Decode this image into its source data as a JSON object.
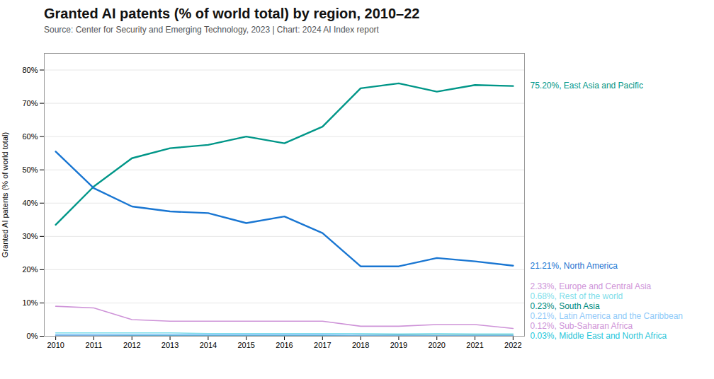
{
  "chart_data": {
    "type": "line",
    "title": "Granted AI patents (% of world total) by region, 2010–22",
    "subtitle": "Source: Center for Security and Emerging Technology, 2023 | Chart: 2024 AI Index report",
    "ylabel": "Granted AI patents (% of world total)",
    "x": [
      2010,
      2011,
      2012,
      2013,
      2014,
      2015,
      2016,
      2017,
      2018,
      2019,
      2020,
      2021,
      2022
    ],
    "xlim": [
      2009.7,
      2022.3
    ],
    "xticks": [
      2010,
      2011,
      2012,
      2013,
      2014,
      2015,
      2016,
      2017,
      2018,
      2019,
      2020,
      2021,
      2022
    ],
    "ylim": [
      0,
      85
    ],
    "yticks": [
      {
        "value": 0,
        "label": "0%"
      },
      {
        "value": 10,
        "label": "10%"
      },
      {
        "value": 20,
        "label": "20%"
      },
      {
        "value": 30,
        "label": "30%"
      },
      {
        "value": 40,
        "label": "40%"
      },
      {
        "value": 50,
        "label": "50%"
      },
      {
        "value": 60,
        "label": "60%"
      },
      {
        "value": 70,
        "label": "70%"
      },
      {
        "value": 80,
        "label": "80%"
      }
    ],
    "grid": true,
    "series": [
      {
        "name": "75.20%, East Asia and Pacific",
        "color": "#009688",
        "values": [
          33.5,
          45.0,
          53.5,
          56.5,
          57.5,
          60.0,
          58.0,
          63.0,
          74.5,
          76.0,
          73.5,
          75.5,
          75.2
        ]
      },
      {
        "name": "21.21%, North America",
        "color": "#1976D2",
        "values": [
          55.5,
          44.5,
          39.0,
          37.5,
          37.0,
          34.0,
          36.0,
          31.0,
          21.0,
          21.0,
          23.5,
          22.5,
          21.21
        ]
      },
      {
        "name": "2.33%, Europe and Central Asia",
        "color": "#CE93D8",
        "values": [
          9.0,
          8.5,
          5.0,
          4.5,
          4.5,
          4.5,
          4.5,
          4.5,
          3.0,
          3.0,
          3.5,
          3.5,
          2.33
        ]
      },
      {
        "name": "0.68%, Rest of the world",
        "color": "#80DEEA",
        "values": [
          1.0,
          1.0,
          1.0,
          1.0,
          0.8,
          0.8,
          0.8,
          0.8,
          0.8,
          0.7,
          0.8,
          0.7,
          0.68
        ]
      },
      {
        "name": "0.23%, South Asia",
        "color": "#00897B",
        "values": [
          0.3,
          0.3,
          0.3,
          0.3,
          0.3,
          0.3,
          0.3,
          0.3,
          0.3,
          0.3,
          0.25,
          0.25,
          0.23
        ]
      },
      {
        "name": "0.21%, Latin America and the Caribbean",
        "color": "#90CAF9",
        "values": [
          0.5,
          0.5,
          0.5,
          0.5,
          0.5,
          0.5,
          0.5,
          0.5,
          0.3,
          0.25,
          0.2,
          0.2,
          0.21
        ]
      },
      {
        "name": "0.12%, Sub-Saharan Africa",
        "color": "#CE93D8",
        "values": [
          0.15,
          0.15,
          0.12,
          0.12,
          0.12,
          0.12,
          0.12,
          0.12,
          0.12,
          0.12,
          0.12,
          0.12,
          0.12
        ]
      },
      {
        "name": "0.03%, Middle East and North Africa",
        "color": "#26C6DA",
        "values": [
          0.05,
          0.05,
          0.05,
          0.05,
          0.05,
          0.05,
          0.05,
          0.05,
          0.05,
          0.04,
          0.04,
          0.03,
          0.03
        ]
      }
    ]
  }
}
